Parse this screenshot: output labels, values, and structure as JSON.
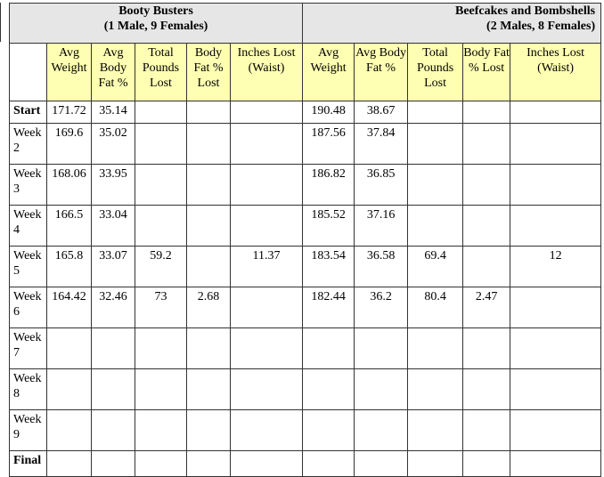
{
  "teams": [
    {
      "name": "Booty Busters",
      "sub": "(1 Male, 9 Females)"
    },
    {
      "name": "Beefcakes and Bombshells",
      "sub": "(2 Males, 8 Females)"
    }
  ],
  "columns": [
    "Avg Weight",
    "Avg Body Fat %",
    "Total Pounds Lost",
    "Body Fat % Lost",
    "Inches Lost (Waist)"
  ],
  "rows": [
    {
      "label": "Start",
      "t1": [
        "171.72",
        "35.14",
        "",
        "",
        ""
      ],
      "t2": [
        "190.48",
        "38.67",
        "",
        "",
        ""
      ]
    },
    {
      "label": "Week 2",
      "t1": [
        "169.6",
        "35.02",
        "",
        "",
        ""
      ],
      "t2": [
        "187.56",
        "37.84",
        "",
        "",
        ""
      ]
    },
    {
      "label": "Week 3",
      "t1": [
        "168.06",
        "33.95",
        "",
        "",
        ""
      ],
      "t2": [
        "186.82",
        "36.85",
        "",
        "",
        ""
      ]
    },
    {
      "label": "Week 4",
      "t1": [
        "166.5",
        "33.04",
        "",
        "",
        ""
      ],
      "t2": [
        "185.52",
        "37.16",
        "",
        "",
        ""
      ]
    },
    {
      "label": "Week 5",
      "t1": [
        "165.8",
        "33.07",
        "59.2",
        "",
        "11.37"
      ],
      "t2": [
        "183.54",
        "36.58",
        "69.4",
        "",
        "12"
      ]
    },
    {
      "label": "Week 6",
      "t1": [
        "164.42",
        "32.46",
        "73",
        "2.68",
        ""
      ],
      "t2": [
        "182.44",
        "36.2",
        "80.4",
        "2.47",
        ""
      ]
    },
    {
      "label": "Week 7",
      "t1": [
        "",
        "",
        "",
        "",
        ""
      ],
      "t2": [
        "",
        "",
        "",
        "",
        ""
      ]
    },
    {
      "label": "Week 8",
      "t1": [
        "",
        "",
        "",
        "",
        ""
      ],
      "t2": [
        "",
        "",
        "",
        "",
        ""
      ]
    },
    {
      "label": "Week 9",
      "t1": [
        "",
        "",
        "",
        "",
        ""
      ],
      "t2": [
        "",
        "",
        "",
        "",
        ""
      ]
    },
    {
      "label": "Final",
      "t1": [
        "",
        "",
        "",
        "",
        ""
      ],
      "t2": [
        "",
        "",
        "",
        "",
        ""
      ]
    }
  ],
  "colors": {
    "header_bg": "#ffffb3",
    "team_bg": "#e6e6e6",
    "border": "#333333"
  }
}
